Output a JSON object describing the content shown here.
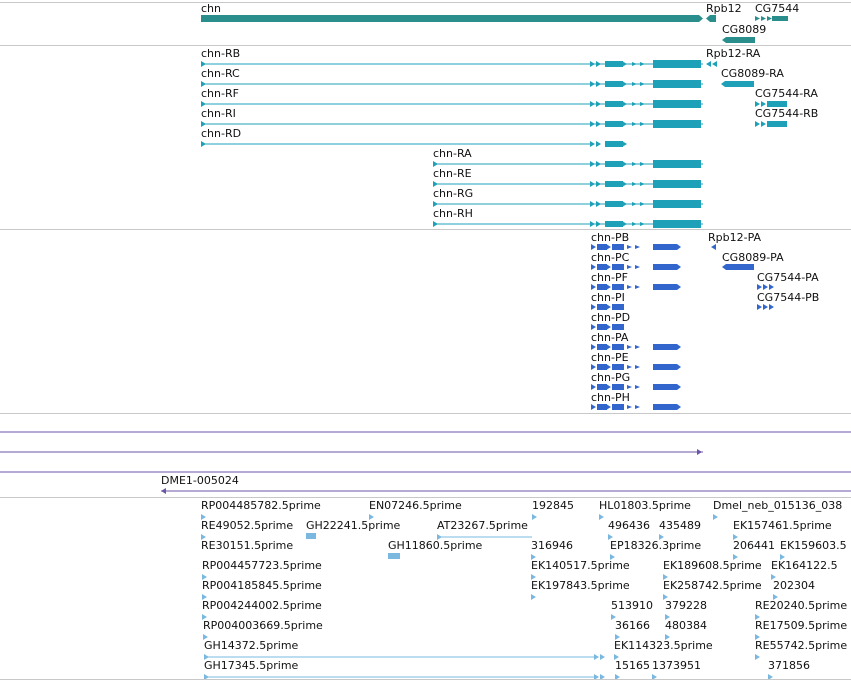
{
  "colors": {
    "gene": "#2a8f8c",
    "transcript": "#1ea1b8",
    "protein": "#3366cc",
    "purple": "#6a55a8",
    "est": "#7ab8e0",
    "separator": "#c8c8c8"
  },
  "gene_track": {
    "labels": [
      "chn",
      "Rpb12",
      "CG7544",
      "CG8089"
    ]
  },
  "transcript_track": {
    "labels": [
      "chn-RB",
      "chn-RC",
      "chn-RF",
      "chn-RI",
      "chn-RD",
      "chn-RA",
      "chn-RE",
      "chn-RG",
      "chn-RH",
      "Rpb12-RA",
      "CG8089-RA",
      "CG7544-RA",
      "CG7544-RB"
    ]
  },
  "protein_track": {
    "labels": [
      "chn-PB",
      "chn-PC",
      "chn-PF",
      "chn-PI",
      "chn-PD",
      "chn-PA",
      "chn-PE",
      "chn-PG",
      "chn-PH",
      "Rpb12-PA",
      "CG8089-PA",
      "CG7544-PA",
      "CG7544-PB"
    ]
  },
  "misc_track": {
    "label": "DME1-005024"
  },
  "est_track": {
    "labels": [
      "RP004485782.5prime",
      "EN07246.5prime",
      "192845",
      "HL01803.5prime",
      "Dmel_neb_015136_038",
      "RE49052.5prime",
      "GH22241.5prime",
      "AT23267.5prime",
      "496436",
      "435489",
      "EK157461.5prime",
      "RE30151.5prime",
      "GH11860.5prime",
      "316946",
      "EP18326.3prime",
      "206441",
      "EK159603.5",
      "RP004457723.5prime",
      "EK140517.5prime",
      "EK189608.5prime",
      "EK164122.5",
      "RP004185845.5prime",
      "EK197843.5prime",
      "EK258742.5prime",
      "202304",
      "RP004244002.5prime",
      "513910",
      "379228",
      "RE20240.5prime",
      "RP004003669.5prime",
      "36166",
      "480384",
      "RE17509.5prime",
      "GH14372.5prime",
      "EK114323.5prime",
      "RE55742.5prime",
      "GH17345.5prime",
      "15165",
      "1373951",
      "371856"
    ]
  }
}
